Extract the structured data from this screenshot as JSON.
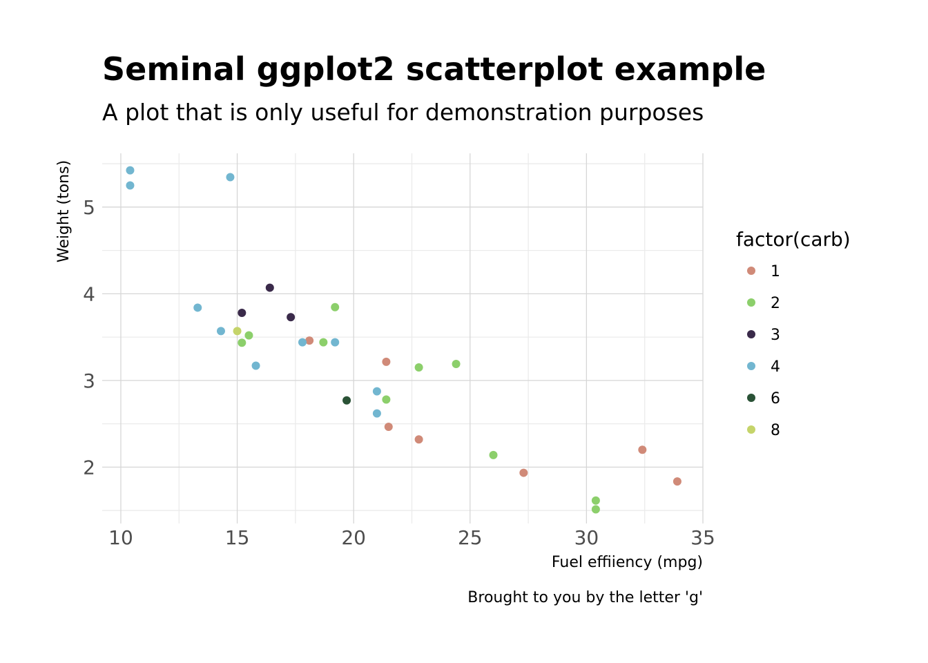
{
  "chart_data": {
    "type": "scatter",
    "title": "Seminal ggplot2 scatterplot example",
    "subtitle": "A plot that is only useful for demonstration purposes",
    "xlabel": "Fuel effiiency (mpg)",
    "ylabel": "Weight (tons)",
    "caption": "Brought to you by the letter 'g'",
    "xlim": [
      9.2,
      35.0
    ],
    "ylim": [
      1.35,
      5.62
    ],
    "x_ticks": [
      10,
      15,
      20,
      25,
      30,
      35
    ],
    "x_tick_labels": [
      "10",
      "15",
      "20",
      "25",
      "30",
      "35"
    ],
    "y_ticks": [
      2,
      3,
      4,
      5
    ],
    "y_tick_labels": [
      "2",
      "3",
      "4",
      "5"
    ],
    "grid": true,
    "legend": {
      "title": "factor(carb)",
      "position": "right"
    },
    "series": [
      {
        "name": "1",
        "color": "#d08a78",
        "points": [
          {
            "x": 21.4,
            "y": 3.215
          },
          {
            "x": 18.1,
            "y": 3.46
          },
          {
            "x": 22.8,
            "y": 2.32
          },
          {
            "x": 32.4,
            "y": 2.2
          },
          {
            "x": 33.9,
            "y": 1.835
          },
          {
            "x": 21.5,
            "y": 2.465
          },
          {
            "x": 27.3,
            "y": 1.935
          }
        ]
      },
      {
        "name": "2",
        "color": "#8ccf6b",
        "points": [
          {
            "x": 18.7,
            "y": 3.44
          },
          {
            "x": 24.4,
            "y": 3.19
          },
          {
            "x": 22.8,
            "y": 3.15
          },
          {
            "x": 30.4,
            "y": 1.615
          },
          {
            "x": 15.5,
            "y": 3.52
          },
          {
            "x": 15.2,
            "y": 3.435
          },
          {
            "x": 26.0,
            "y": 2.14
          },
          {
            "x": 30.4,
            "y": 1.513
          },
          {
            "x": 21.4,
            "y": 2.78
          },
          {
            "x": 19.2,
            "y": 3.845
          }
        ]
      },
      {
        "name": "3",
        "color": "#3a2a4a",
        "points": [
          {
            "x": 16.4,
            "y": 4.07
          },
          {
            "x": 17.3,
            "y": 3.73
          },
          {
            "x": 15.2,
            "y": 3.78
          }
        ]
      },
      {
        "name": "4",
        "color": "#72b6d0",
        "points": [
          {
            "x": 21.0,
            "y": 2.62
          },
          {
            "x": 21.0,
            "y": 2.875
          },
          {
            "x": 14.3,
            "y": 3.57
          },
          {
            "x": 19.2,
            "y": 3.44
          },
          {
            "x": 17.8,
            "y": 3.44
          },
          {
            "x": 10.4,
            "y": 5.25
          },
          {
            "x": 10.4,
            "y": 5.424
          },
          {
            "x": 14.7,
            "y": 5.345
          },
          {
            "x": 13.3,
            "y": 3.84
          },
          {
            "x": 15.8,
            "y": 3.17
          }
        ]
      },
      {
        "name": "6",
        "color": "#2a5236",
        "points": [
          {
            "x": 19.7,
            "y": 2.77
          }
        ]
      },
      {
        "name": "8",
        "color": "#c5d46a",
        "points": [
          {
            "x": 15.0,
            "y": 3.57
          }
        ]
      }
    ]
  }
}
